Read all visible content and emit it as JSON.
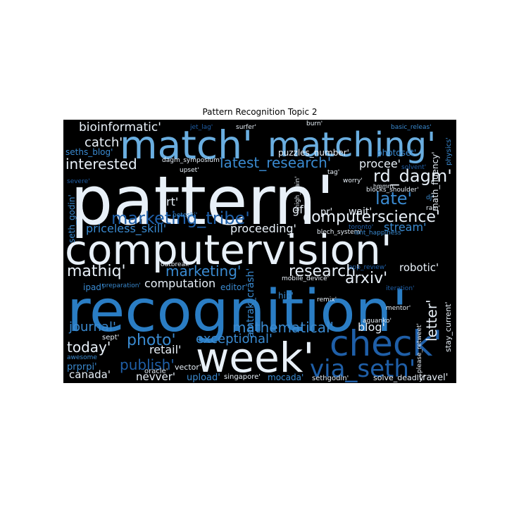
{
  "chart_data": {
    "type": "wordcloud",
    "title": "Pattern Recognition Topic 2",
    "words": [
      "pattern'",
      "computervision'",
      "recognition'",
      "match'",
      "matching'",
      "week'",
      "check'",
      "via_seth'",
      "bioinformatic'",
      "catch'",
      "seths_blog'",
      "interested",
      "latest_research'",
      "rd_dagm'",
      "procee'",
      "puzzles_number'",
      "photoset'",
      "late'",
      "computerscience'",
      "marketing_tribe'",
      "priceless_skill'",
      "proceeding'",
      "stream'",
      "rt'",
      "gf'",
      "pr'",
      "wait'",
      "mathiq'",
      "marketing'",
      "research'",
      "arxiv'",
      "robotic'",
      "computation",
      "editor'",
      "ipad'",
      "journal'",
      "mathematical'",
      "blog'",
      "letter'",
      "today'",
      "photo'",
      "exceptional'",
      "retail'",
      "publish'",
      "canada'",
      "nevver'",
      "upload'",
      "singapore'",
      "mocada'",
      "sethgodin'",
      "solve_deadly'",
      "travel'",
      "stay_current'",
      "math_fluency'",
      "amtrak_crash'",
      "seth_godin'",
      "dagm_symposium'",
      "jet_lag'",
      "surfer'",
      "burn'",
      "basic_releas'",
      "vector'",
      "oracle'",
      "sept'",
      "prprpi'",
      "awesome",
      "mobile_device'",
      "remix'",
      "iteration'",
      "mentor'",
      "aguanko'",
      "blocks_shoulder'",
      "toronto'",
      "rain'",
      "blech_system'",
      "isnt_happiness'",
      "physics'",
      "solvent'",
      "tag'",
      "worry'",
      "hmmm",
      "dj'",
      "upset'",
      "severe'",
      "peteski'",
      "outbreak'",
      "preparation'",
      "hip'",
      "app_review'",
      "please_retweet'",
      "thigh_pain'"
    ]
  }
}
